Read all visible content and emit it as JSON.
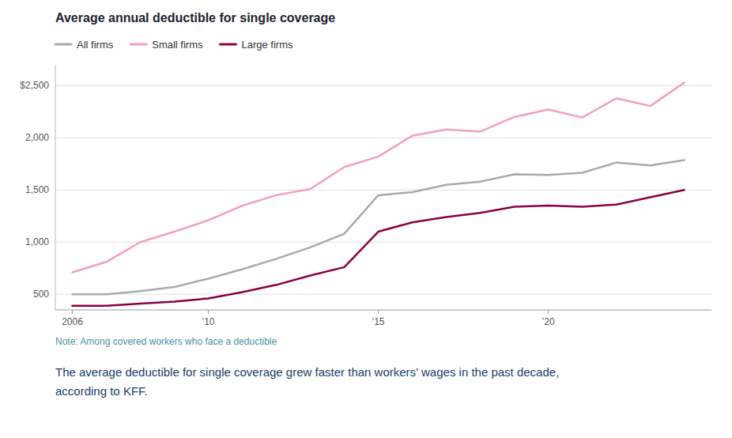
{
  "chart_data": {
    "type": "line",
    "title": "Average annual deductible for single coverage",
    "annotations": [
      "Note: Among covered workers who face a deductible",
      "The average deductible for single coverage grew faster than workers’ wages in the past decade,\naccording to KFF."
    ],
    "x": [
      2006,
      2007,
      2008,
      2009,
      2010,
      2011,
      2012,
      2013,
      2014,
      2015,
      2016,
      2017,
      2018,
      2019,
      2020,
      2021,
      2022,
      2023,
      2024
    ],
    "series": [
      {
        "name": "All firms",
        "color": "#aaaaaa",
        "values": [
          500,
          500,
          530,
          570,
          650,
          740,
          840,
          950,
          1080,
          1450,
          1480,
          1550,
          1580,
          1650,
          1645,
          1665,
          1763,
          1735,
          1787
        ]
      },
      {
        "name": "Small firms",
        "color": "#f4a0b5",
        "values": [
          710,
          810,
          1000,
          1100,
          1210,
          1350,
          1450,
          1510,
          1720,
          1820,
          2020,
          2080,
          2060,
          2200,
          2271,
          2195,
          2379,
          2305,
          2530
        ]
      },
      {
        "name": "Large firms",
        "color": "#8b0042",
        "values": [
          390,
          390,
          410,
          430,
          460,
          520,
          590,
          680,
          760,
          1100,
          1190,
          1240,
          1280,
          1340,
          1350,
          1340,
          1360,
          1430,
          1500
        ]
      }
    ],
    "xlim": [
      2005.5,
      2024.8
    ],
    "xticks": [
      2006,
      {
        "value": 2010,
        "label": "’10"
      },
      {
        "value": 2015,
        "label": "’15"
      },
      {
        "value": 2020,
        "label": "’20"
      }
    ],
    "ylim": [
      350,
      2700
    ],
    "yticks": [
      500,
      {
        "value": 1000,
        "label": "1,000"
      },
      {
        "value": 1500,
        "label": "1,500"
      },
      {
        "value": 2000,
        "label": "2,000"
      },
      {
        "value": 2500,
        "label": "$2,500"
      }
    ],
    "grid": true,
    "legend": "top"
  }
}
